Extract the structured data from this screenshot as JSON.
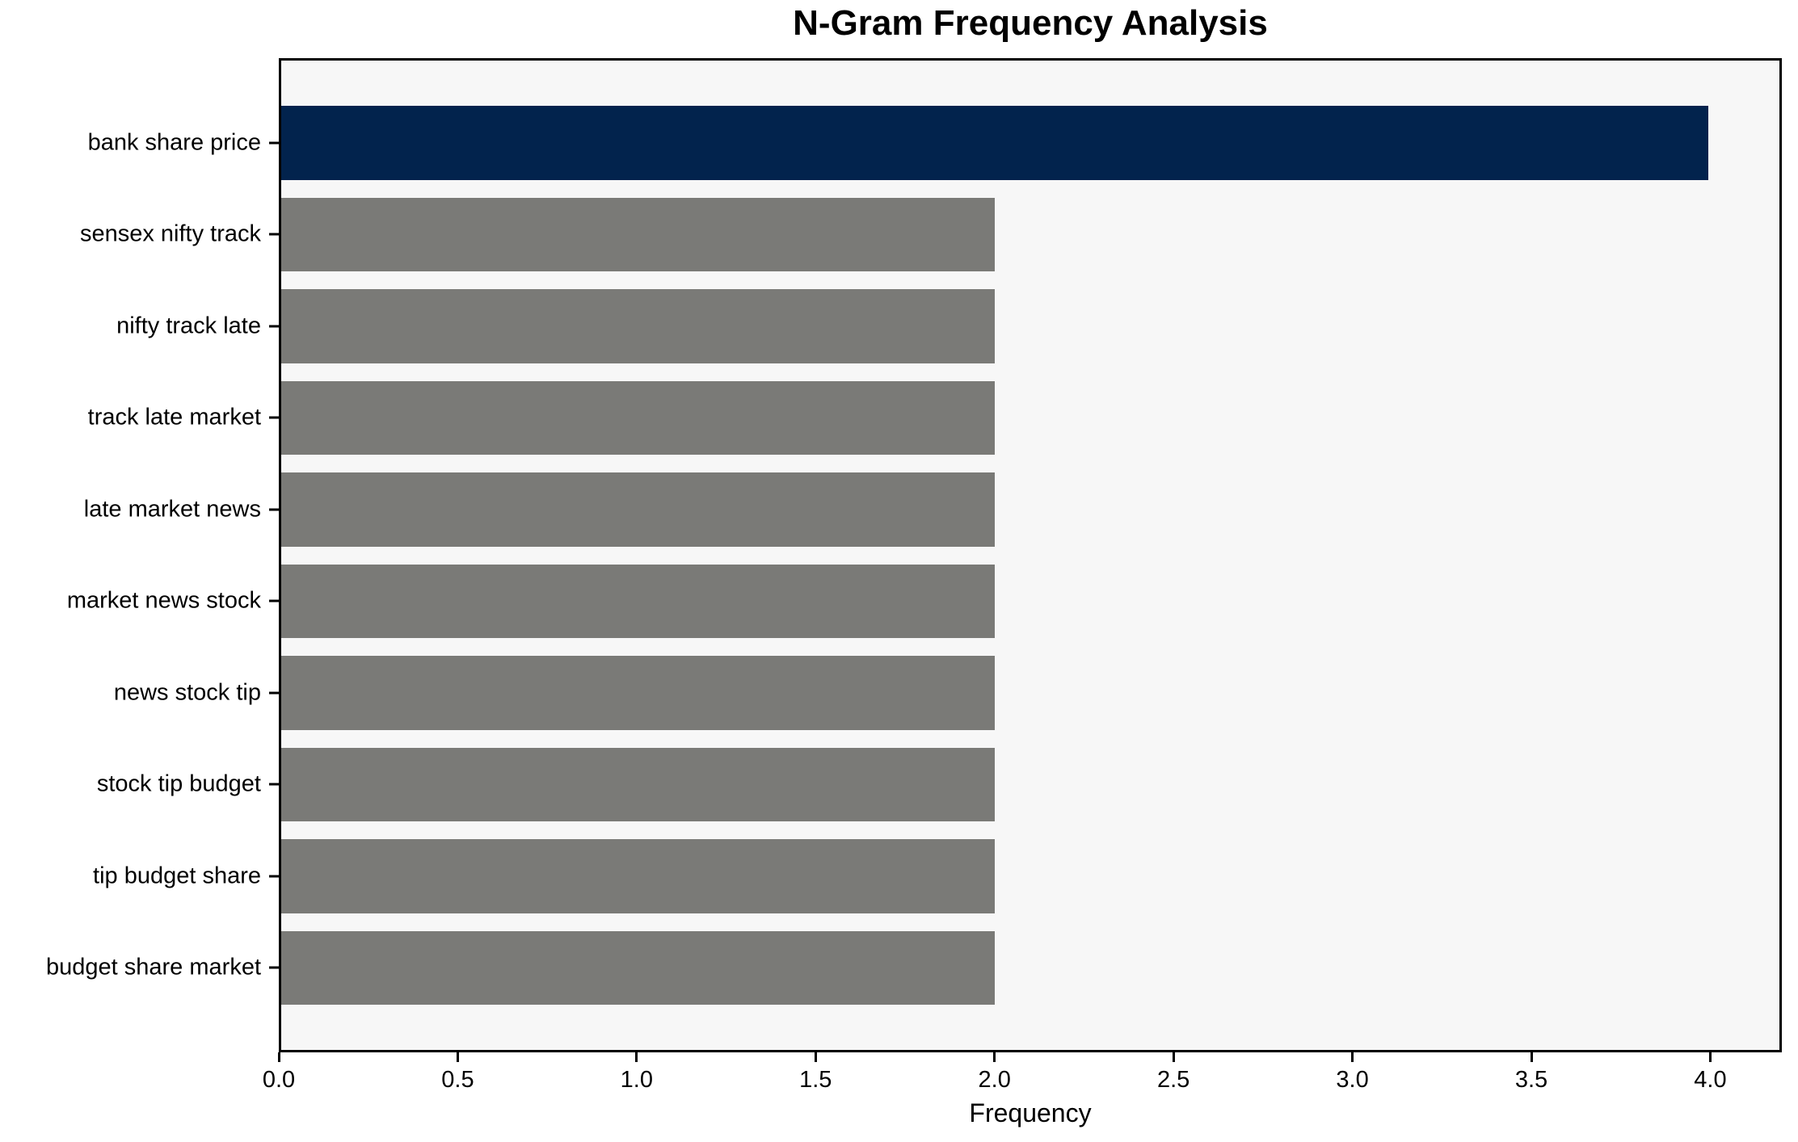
{
  "title": "N-Gram Frequency Analysis",
  "chart_data": {
    "type": "bar",
    "orientation": "horizontal",
    "title": "N-Gram Frequency Analysis",
    "xlabel": "Frequency",
    "ylabel": "",
    "categories": [
      "bank share price",
      "sensex nifty track",
      "nifty track late",
      "track late market",
      "late market news",
      "market news stock",
      "news stock tip",
      "stock tip budget",
      "tip budget share",
      "budget share market"
    ],
    "values": [
      4,
      2,
      2,
      2,
      2,
      2,
      2,
      2,
      2,
      2
    ],
    "bar_colors": [
      "#02234d",
      "#7a7a77",
      "#7a7a77",
      "#7a7a77",
      "#7a7a77",
      "#7a7a77",
      "#7a7a77",
      "#7a7a77",
      "#7a7a77",
      "#7a7a77"
    ],
    "xlim": [
      0,
      4.2
    ],
    "xticks": [
      0.0,
      0.5,
      1.0,
      1.5,
      2.0,
      2.5,
      3.0,
      3.5,
      4.0
    ],
    "xtick_labels": [
      "0.0",
      "0.5",
      "1.0",
      "1.5",
      "2.0",
      "2.5",
      "3.0",
      "3.5",
      "4.0"
    ],
    "grid": false,
    "legend_position": "none",
    "plot_bg": "#f7f7f7",
    "fig_bg": "#ffffff",
    "axis_color": "#000000",
    "highlight_color": "#02234d",
    "default_bar_color": "#7a7a77"
  }
}
